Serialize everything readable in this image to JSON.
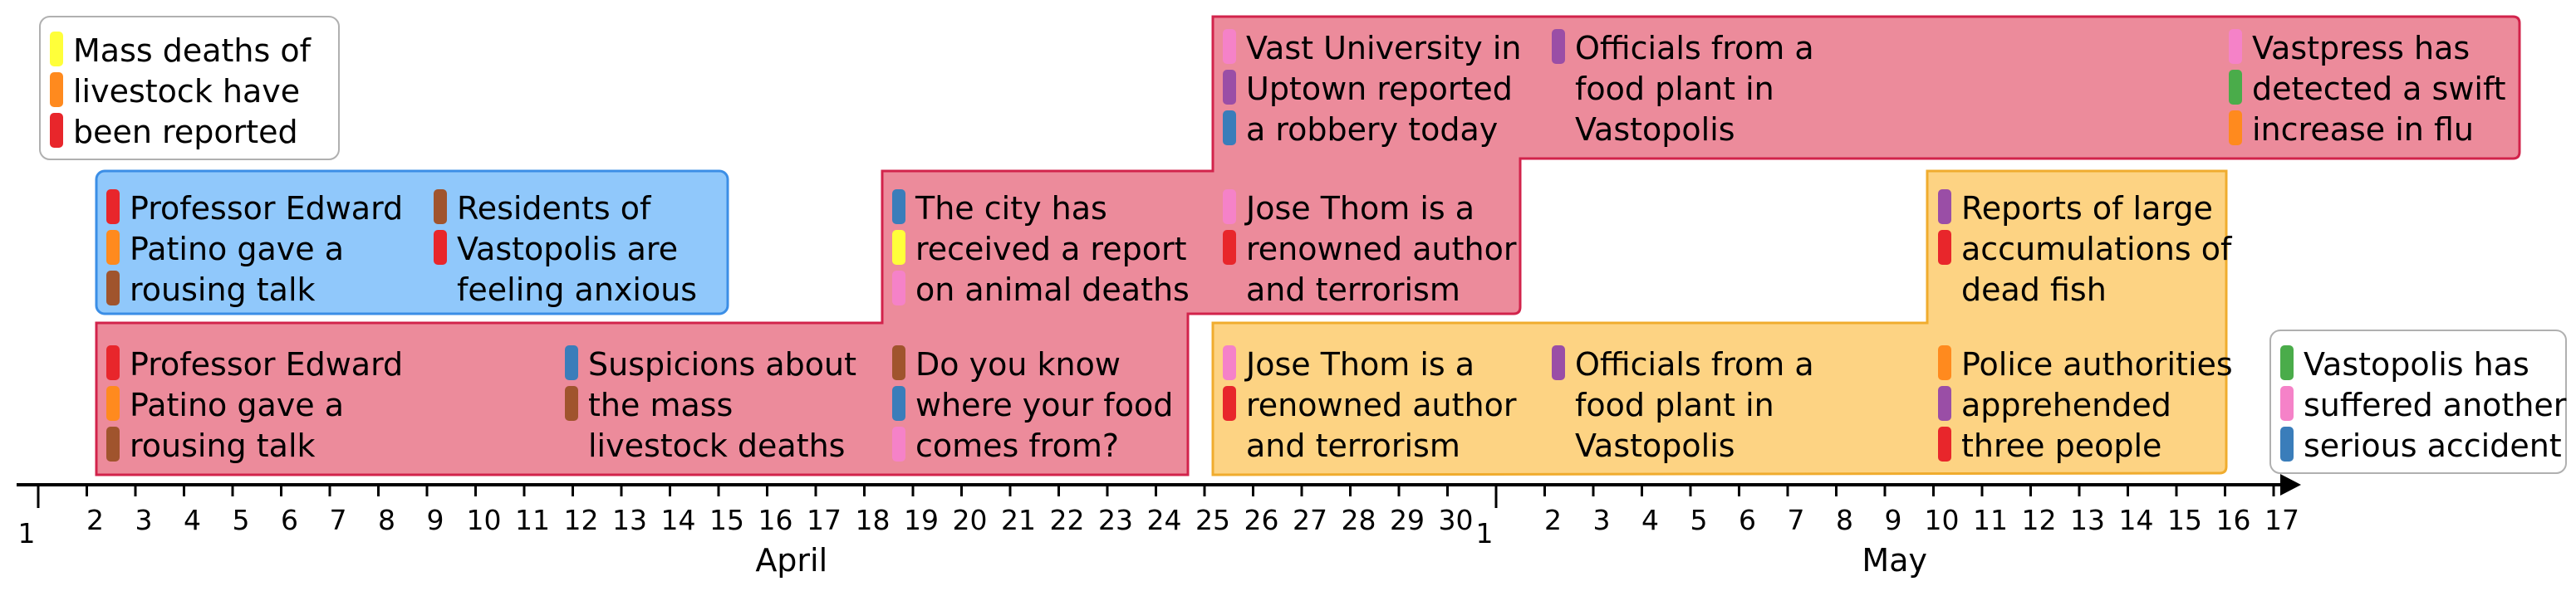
{
  "timeline": {
    "months": [
      {
        "label": "April",
        "start": "Apr 1",
        "end": "Apr 30"
      },
      {
        "label": "May",
        "start": "May 1",
        "end": "May 17"
      }
    ],
    "ticks": [
      {
        "day": "1",
        "label": "1"
      },
      {
        "day": "2",
        "label": "2"
      },
      {
        "day": "3",
        "label": "3"
      },
      {
        "day": "4",
        "label": "4"
      },
      {
        "day": "5",
        "label": "5"
      },
      {
        "day": "6",
        "label": "6"
      },
      {
        "day": "7",
        "label": "7"
      },
      {
        "day": "8",
        "label": "8"
      },
      {
        "day": "9",
        "label": "9"
      },
      {
        "day": "10",
        "label": "10"
      },
      {
        "day": "11",
        "label": "11"
      },
      {
        "day": "12",
        "label": "12"
      },
      {
        "day": "13",
        "label": "13"
      },
      {
        "day": "14",
        "label": "14"
      },
      {
        "day": "15",
        "label": "15"
      },
      {
        "day": "16",
        "label": "16"
      },
      {
        "day": "17",
        "label": "17"
      },
      {
        "day": "18",
        "label": "18"
      },
      {
        "day": "19",
        "label": "19"
      },
      {
        "day": "20",
        "label": "20"
      },
      {
        "day": "21",
        "label": "21"
      },
      {
        "day": "22",
        "label": "22"
      },
      {
        "day": "23",
        "label": "23"
      },
      {
        "day": "24",
        "label": "24"
      },
      {
        "day": "25",
        "label": "25"
      },
      {
        "day": "26",
        "label": "26"
      },
      {
        "day": "27",
        "label": "27"
      },
      {
        "day": "28",
        "label": "28"
      },
      {
        "day": "29",
        "label": "29"
      },
      {
        "day": "30",
        "label": "30"
      },
      {
        "day": "May 1",
        "label": "1"
      },
      {
        "day": "May 2",
        "label": "2"
      },
      {
        "day": "May 3",
        "label": "3"
      },
      {
        "day": "May 4",
        "label": "4"
      },
      {
        "day": "May 5",
        "label": "5"
      },
      {
        "day": "May 6",
        "label": "6"
      },
      {
        "day": "May 7",
        "label": "7"
      },
      {
        "day": "May 8",
        "label": "8"
      },
      {
        "day": "May 9",
        "label": "9"
      },
      {
        "day": "May 10",
        "label": "10"
      },
      {
        "day": "May 11",
        "label": "11"
      },
      {
        "day": "May 12",
        "label": "12"
      },
      {
        "day": "May 13",
        "label": "13"
      },
      {
        "day": "May 14",
        "label": "14"
      },
      {
        "day": "May 15",
        "label": "15"
      },
      {
        "day": "May 16",
        "label": "16"
      },
      {
        "day": "May 17",
        "label": "17"
      }
    ]
  },
  "colors": {
    "red_theme_fill": "#ec8b9b",
    "red_theme_stroke": "#d2234b",
    "blue_theme_fill": "#90c8fb",
    "blue_theme_stroke": "#3b8ee6",
    "orange_theme_fill": "#fdd383",
    "orange_theme_stroke": "#f0ac2e",
    "tags": {
      "yellow": "#ffff3a",
      "orange": "#ff8a1e",
      "red": "#e8262b",
      "brown": "#a0542d",
      "blue": "#3a7dba",
      "purple": "#9a4ea6",
      "pink": "#f582c8",
      "green": "#4aac4a"
    }
  },
  "themes": [
    {
      "id": "theme-red",
      "color": "red"
    },
    {
      "id": "theme-blue",
      "color": "blue"
    },
    {
      "id": "theme-orange",
      "color": "orange"
    }
  ],
  "legends": [
    {
      "id": "legend-left",
      "tags": [
        "yellow",
        "orange",
        "red"
      ],
      "lines": [
        "Mass deaths of",
        "livestock have",
        "been reported"
      ]
    },
    {
      "id": "legend-right",
      "tags": [
        "green",
        "pink",
        "blue"
      ],
      "lines": [
        "Vastopolis has",
        "suffered another",
        "serious accident"
      ]
    }
  ],
  "events": [
    {
      "theme": "blue",
      "tags": [
        "red",
        "orange",
        "brown"
      ],
      "lines": [
        "Professor Edward",
        "Patino gave a",
        "rousing talk"
      ]
    },
    {
      "theme": "blue",
      "tags": [
        "brown",
        "red"
      ],
      "lines": [
        "Residents of",
        "Vastopolis are",
        "feeling anxious"
      ]
    },
    {
      "theme": "red",
      "tags": [
        "red",
        "orange",
        "brown"
      ],
      "lines": [
        "Professor Edward",
        "Patino gave a",
        "rousing talk"
      ]
    },
    {
      "theme": "red",
      "tags": [
        "blue",
        "brown"
      ],
      "lines": [
        "Suspicions about",
        "the mass",
        "livestock deaths"
      ]
    },
    {
      "theme": "red",
      "tags": [
        "blue",
        "yellow",
        "pink"
      ],
      "lines": [
        "The city has",
        "received a report",
        "on animal deaths"
      ]
    },
    {
      "theme": "red",
      "tags": [
        "brown",
        "blue",
        "pink"
      ],
      "lines": [
        "Do you know",
        "where your food",
        "comes from?"
      ]
    },
    {
      "theme": "red",
      "tags": [
        "pink",
        "purple",
        "blue"
      ],
      "lines": [
        "Vast University in",
        "Uptown reported",
        "a robbery today"
      ]
    },
    {
      "theme": "red",
      "tags": [
        "pink",
        "red"
      ],
      "lines": [
        "Jose Thom is a",
        "renowned author",
        "and terrorism"
      ]
    },
    {
      "theme": "red",
      "tags": [
        "purple"
      ],
      "lines": [
        "Officials from a",
        "food plant in",
        "Vastopolis"
      ]
    },
    {
      "theme": "red",
      "tags": [
        "pink",
        "green",
        "orange"
      ],
      "lines": [
        "Vastpress has",
        "detected a swift",
        "increase in flu"
      ]
    },
    {
      "theme": "orange",
      "tags": [
        "pink",
        "red"
      ],
      "lines": [
        "Jose Thom is a",
        "renowned author",
        "and terrorism"
      ]
    },
    {
      "theme": "orange",
      "tags": [
        "purple"
      ],
      "lines": [
        "Officials from a",
        "food plant in",
        "Vastopolis"
      ]
    },
    {
      "theme": "orange",
      "tags": [
        "purple",
        "red"
      ],
      "lines": [
        "Reports of large",
        "accumulations of",
        "dead fish"
      ]
    },
    {
      "theme": "orange",
      "tags": [
        "orange",
        "purple",
        "red"
      ],
      "lines": [
        "Police authorities",
        "apprehended",
        "three people"
      ]
    }
  ]
}
